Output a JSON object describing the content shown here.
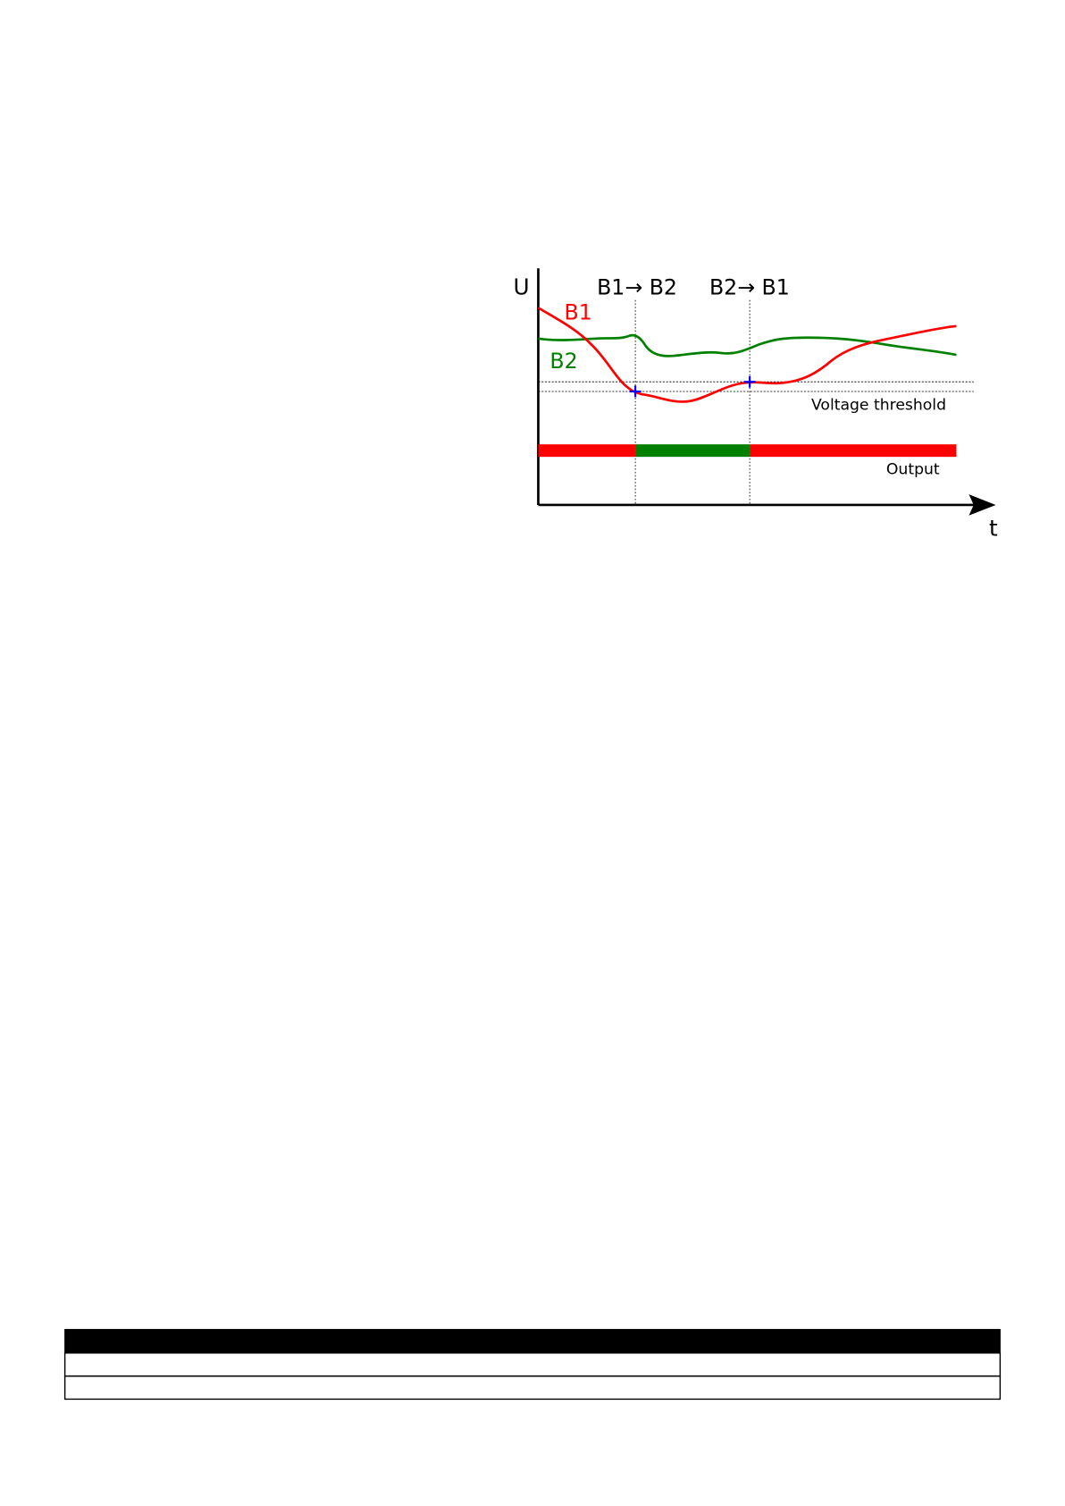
{
  "diagram": {
    "axis_y_label": "U",
    "axis_x_label": "t",
    "transition_1": "B1→ B2",
    "transition_2": "B2→ B1",
    "series_b1_label": "B1",
    "series_b2_label": "B2",
    "threshold_label": "Voltage threshold",
    "output_label": "Output",
    "colors": {
      "b1": "#ff0000",
      "b2": "#008000",
      "crossing_marker": "#0000ff",
      "axis": "#000000"
    },
    "output_states": [
      "B1",
      "B2",
      "B1"
    ]
  },
  "table": {
    "header": "",
    "rows": [
      "",
      ""
    ]
  }
}
